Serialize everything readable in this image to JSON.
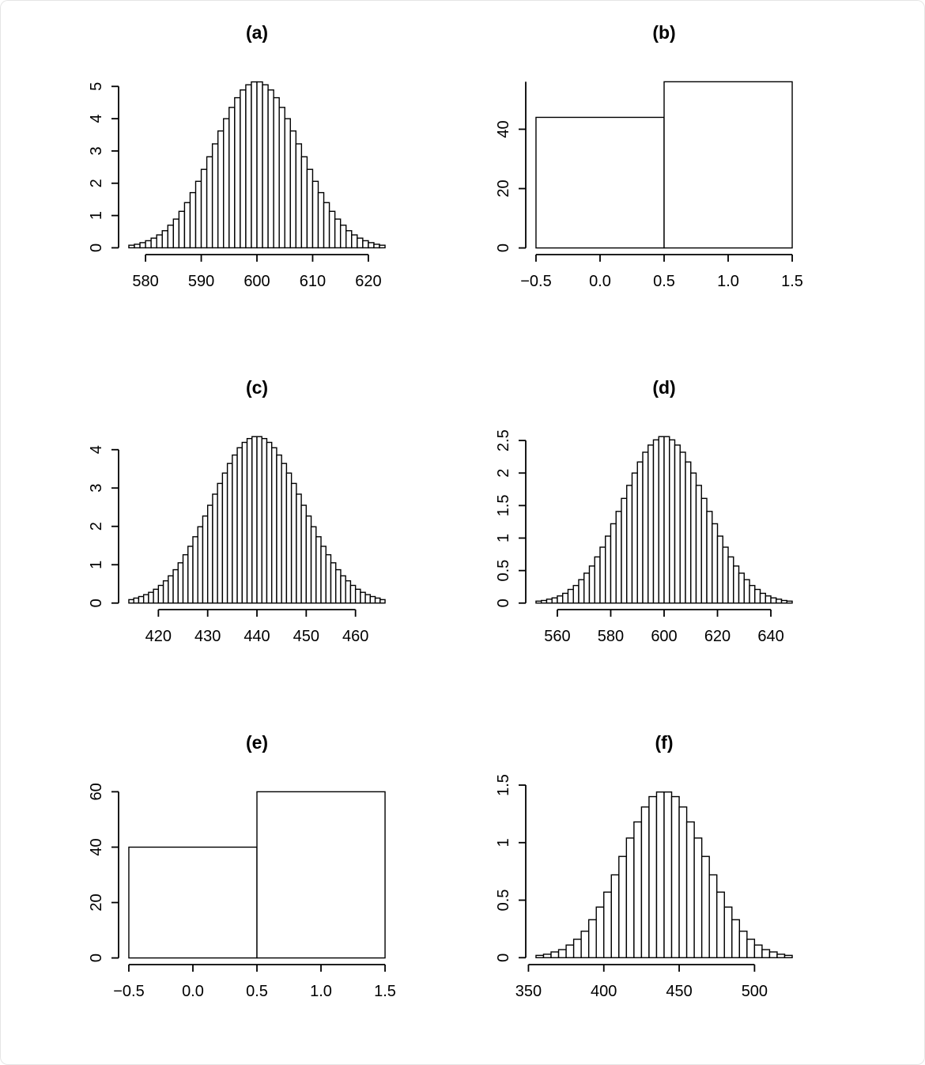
{
  "figure": {
    "background": "#ffffff",
    "border_color": "#e5e5e5",
    "ink_color": "#000000",
    "bar_fill": "#ffffff",
    "layout": "3x2 panel grid of R-style histograms"
  },
  "chart_data": [
    {
      "id": "a",
      "title": "(a)",
      "type": "bar",
      "xlabel": "",
      "ylabel": "",
      "bar_start": 577,
      "bin_width": 1,
      "values": [
        0.08,
        0.11,
        0.16,
        0.22,
        0.3,
        0.4,
        0.53,
        0.7,
        0.89,
        1.13,
        1.4,
        1.71,
        2.06,
        2.43,
        2.82,
        3.22,
        3.62,
        4.0,
        4.35,
        4.65,
        4.89,
        5.05,
        5.14,
        5.14,
        5.05,
        4.89,
        4.65,
        4.35,
        4.0,
        3.62,
        3.22,
        2.82,
        2.43,
        2.06,
        1.71,
        1.4,
        1.13,
        0.89,
        0.7,
        0.53,
        0.4,
        0.3,
        0.22,
        0.16,
        0.11,
        0.08
      ],
      "x_ticks": [
        580,
        590,
        600,
        610,
        620
      ],
      "x_tick_labels": [
        "580",
        "590",
        "600",
        "610",
        "620"
      ],
      "y_ticks": [
        0,
        1,
        2,
        3,
        4,
        5
      ],
      "y_tick_labels": [
        "0",
        "1",
        "2",
        "3",
        "4",
        "5"
      ],
      "xlim": [
        575.16,
        624.84
      ],
      "ylim": [
        -0.21,
        5.35
      ]
    },
    {
      "id": "b",
      "title": "(b)",
      "type": "bar",
      "xlabel": "",
      "ylabel": "",
      "bar_start": -0.5,
      "bin_width": 1,
      "values": [
        44,
        56
      ],
      "x_ticks": [
        -0.5,
        0,
        0.5,
        1,
        1.5
      ],
      "x_tick_labels": [
        "−0.5",
        "0.0",
        "0.5",
        "1.0",
        "1.5"
      ],
      "y_ticks": [
        0,
        20,
        40
      ],
      "y_tick_labels": [
        "0",
        "20",
        "40"
      ],
      "xlim": [
        -0.58,
        1.58
      ],
      "ylim": [
        -2.24,
        58.24
      ],
      "y_axis_extend": 56
    },
    {
      "id": "c",
      "title": "(c)",
      "type": "bar",
      "xlabel": "",
      "ylabel": "",
      "bar_start": 414,
      "bin_width": 1,
      "values": [
        0.09,
        0.13,
        0.17,
        0.22,
        0.28,
        0.36,
        0.46,
        0.58,
        0.71,
        0.87,
        1.05,
        1.26,
        1.48,
        1.73,
        1.99,
        2.27,
        2.55,
        2.84,
        3.12,
        3.39,
        3.64,
        3.86,
        4.05,
        4.19,
        4.29,
        4.34,
        4.34,
        4.29,
        4.19,
        4.05,
        3.86,
        3.64,
        3.39,
        3.12,
        2.84,
        2.55,
        2.27,
        1.99,
        1.73,
        1.48,
        1.26,
        1.05,
        0.87,
        0.71,
        0.58,
        0.46,
        0.36,
        0.28,
        0.22,
        0.17,
        0.13,
        0.09
      ],
      "x_ticks": [
        420,
        430,
        440,
        450,
        460
      ],
      "x_tick_labels": [
        "420",
        "430",
        "440",
        "450",
        "460"
      ],
      "y_ticks": [
        0,
        1,
        2,
        3,
        4
      ],
      "y_tick_labels": [
        "0",
        "1",
        "2",
        "3",
        "4"
      ],
      "xlim": [
        411.92,
        468.08
      ],
      "ylim": [
        -0.17,
        4.51
      ]
    },
    {
      "id": "d",
      "title": "(d)",
      "type": "bar",
      "xlabel": "",
      "ylabel": "",
      "bar_start": 552,
      "bin_width": 2,
      "values": [
        0.03,
        0.04,
        0.06,
        0.08,
        0.11,
        0.15,
        0.21,
        0.27,
        0.36,
        0.46,
        0.57,
        0.71,
        0.86,
        1.03,
        1.22,
        1.41,
        1.61,
        1.81,
        2.0,
        2.17,
        2.32,
        2.43,
        2.51,
        2.56,
        2.56,
        2.51,
        2.43,
        2.32,
        2.17,
        2.0,
        1.81,
        1.61,
        1.41,
        1.22,
        1.03,
        0.86,
        0.71,
        0.57,
        0.46,
        0.36,
        0.27,
        0.21,
        0.15,
        0.11,
        0.08,
        0.06,
        0.04,
        0.03
      ],
      "x_ticks": [
        560,
        580,
        600,
        620,
        640
      ],
      "x_tick_labels": [
        "560",
        "580",
        "600",
        "620",
        "640"
      ],
      "y_ticks": [
        0,
        0.5,
        1,
        1.5,
        2,
        2.5
      ],
      "y_tick_labels": [
        "0",
        "0.5",
        "1",
        "1.5",
        "2",
        "2.5"
      ],
      "xlim": [
        548.16,
        651.84
      ],
      "ylim": [
        -0.1,
        2.66
      ]
    },
    {
      "id": "e",
      "title": "(e)",
      "type": "bar",
      "xlabel": "",
      "ylabel": "",
      "bar_start": -0.5,
      "bin_width": 1,
      "values": [
        40,
        60
      ],
      "x_ticks": [
        -0.5,
        0,
        0.5,
        1,
        1.5
      ],
      "x_tick_labels": [
        "−0.5",
        "0.0",
        "0.5",
        "1.0",
        "1.5"
      ],
      "y_ticks": [
        0,
        20,
        40,
        60
      ],
      "y_tick_labels": [
        "0",
        "20",
        "40",
        "60"
      ],
      "xlim": [
        -0.58,
        1.58
      ],
      "ylim": [
        -2.4,
        62.4
      ]
    },
    {
      "id": "f",
      "title": "(f)",
      "type": "bar",
      "xlabel": "",
      "ylabel": "",
      "bar_start": 355,
      "bin_width": 5,
      "values": [
        0.02,
        0.03,
        0.05,
        0.07,
        0.11,
        0.16,
        0.23,
        0.33,
        0.44,
        0.57,
        0.72,
        0.88,
        1.04,
        1.18,
        1.31,
        1.4,
        1.44,
        1.44,
        1.4,
        1.31,
        1.18,
        1.04,
        0.88,
        0.72,
        0.57,
        0.44,
        0.33,
        0.23,
        0.16,
        0.11,
        0.07,
        0.05,
        0.03,
        0.02
      ],
      "x_ticks": [
        350,
        400,
        450,
        500
      ],
      "x_tick_labels": [
        "350",
        "400",
        "450",
        "500"
      ],
      "y_ticks": [
        0,
        0.5,
        1,
        1.5
      ],
      "y_tick_labels": [
        "0",
        "0.5",
        "1",
        "1.5"
      ],
      "xlim": [
        348.2,
        531.8
      ],
      "ylim": [
        -0.06,
        1.5
      ]
    }
  ]
}
